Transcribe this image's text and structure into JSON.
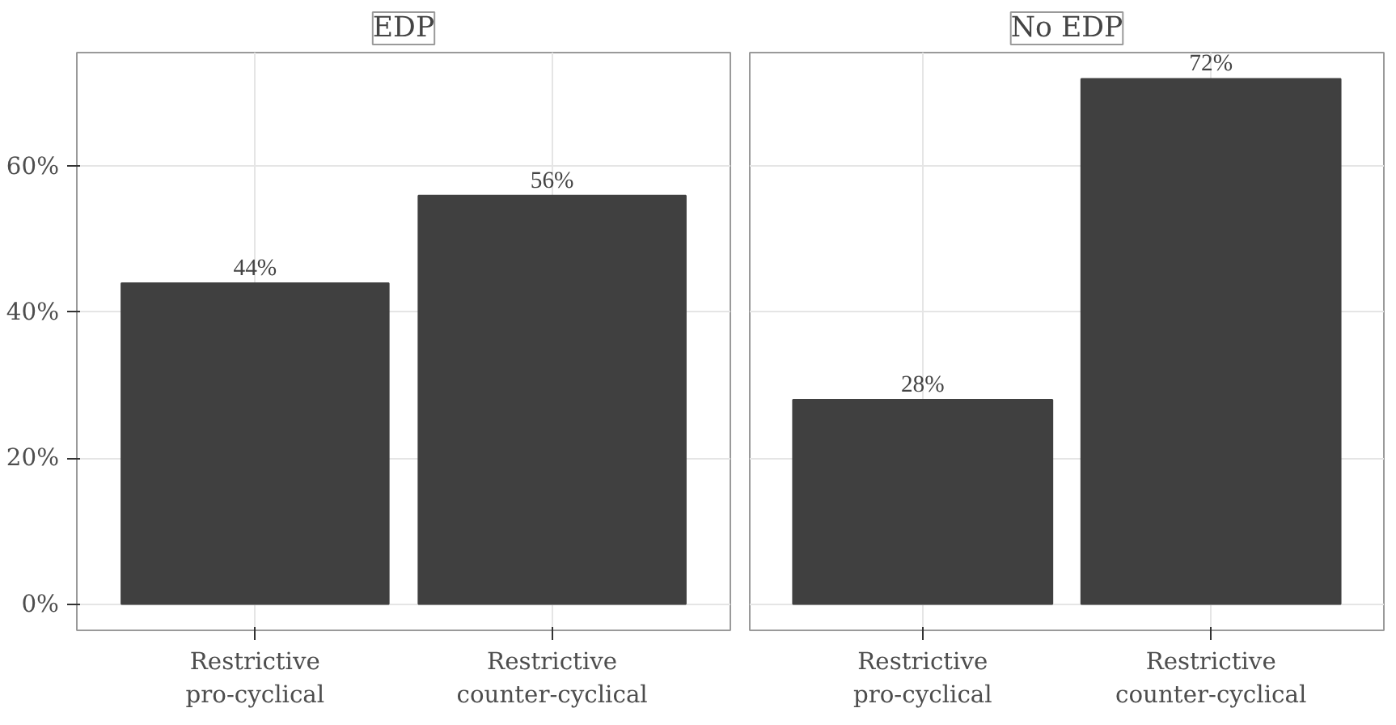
{
  "chart_data": [
    {
      "type": "bar",
      "title": "EDP",
      "categories": [
        "Restrictive pro-cyclical",
        "Restrictive counter-cyclical"
      ],
      "values": [
        44,
        56
      ],
      "value_labels": [
        "44%",
        "56%"
      ],
      "color": "#404040",
      "ylim": [
        -3.6,
        75.6
      ],
      "yticks": [
        {
          "value": 0,
          "label": "0%"
        },
        {
          "value": 20,
          "label": "20%"
        },
        {
          "value": 40,
          "label": "40%"
        },
        {
          "value": 60,
          "label": "60%"
        }
      ],
      "grid": true
    },
    {
      "type": "bar",
      "title": "No EDP",
      "categories": [
        "Restrictive pro-cyclical",
        "Restrictive counter-cyclical"
      ],
      "values": [
        28,
        72
      ],
      "value_labels": [
        "28%",
        "72%"
      ],
      "color": "#404040",
      "ylim": [
        -3.6,
        75.6
      ],
      "yticks": [
        {
          "value": 0,
          "label": null
        },
        {
          "value": 20,
          "label": null
        },
        {
          "value": 40,
          "label": null
        },
        {
          "value": 60,
          "label": null
        }
      ],
      "grid": true,
      "tick_labels": "x"
    }
  ]
}
